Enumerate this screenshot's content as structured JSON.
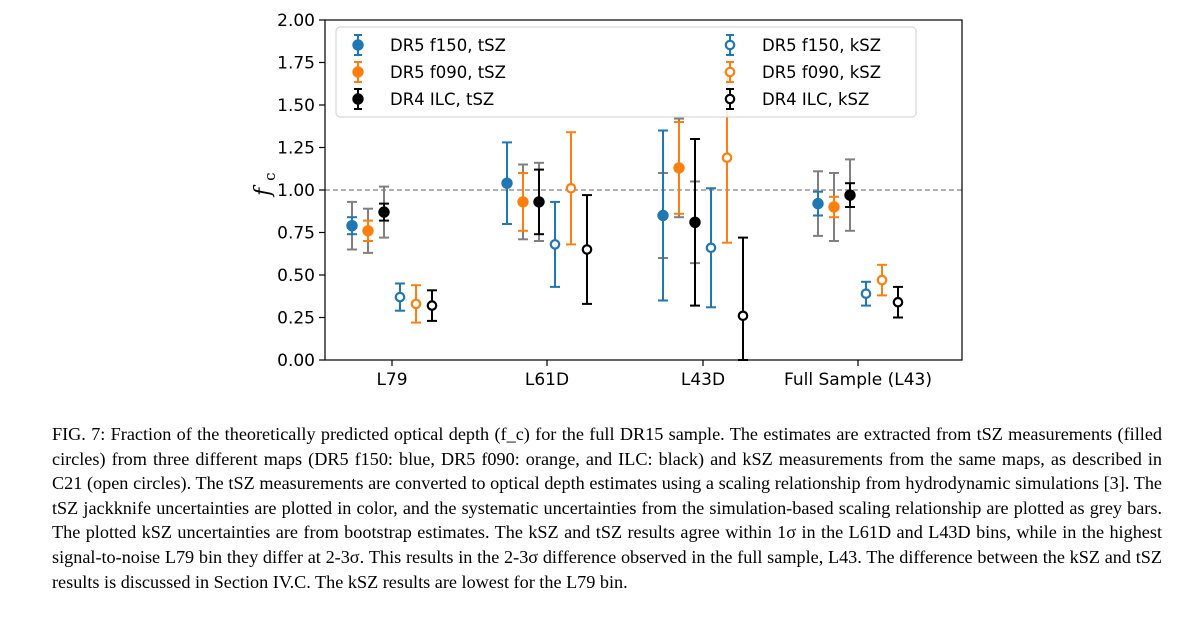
{
  "chart_data": {
    "type": "scatter",
    "ylabel": "f_c",
    "ylabel_main": "f",
    "ylabel_sub": "c",
    "ylim": [
      0,
      2.0
    ],
    "yticks": [
      "0.00",
      "0.25",
      "0.50",
      "0.75",
      "1.00",
      "1.25",
      "1.50",
      "1.75",
      "2.00"
    ],
    "categories": [
      "L79",
      "L61D",
      "L43D",
      "Full Sample (L43)"
    ],
    "reference_line": 1.0,
    "grid": false,
    "legend_location": "top",
    "series": [
      {
        "name": "DR5 f150, tSZ",
        "color": "#1f77b4",
        "marker": "filled",
        "values": [
          0.79,
          1.04,
          0.85,
          0.92
        ],
        "err": [
          [
            0.05,
            0.05
          ],
          [
            0.24,
            0.24
          ],
          [
            0.5,
            0.5
          ],
          [
            0.07,
            0.07
          ]
        ],
        "sys": [
          [
            0.14,
            0.14
          ],
          null,
          [
            0.25,
            0.25
          ],
          [
            0.19,
            0.19
          ]
        ]
      },
      {
        "name": "DR5 f090, tSZ",
        "color": "#ff7f0e",
        "marker": "filled",
        "values": [
          0.76,
          0.93,
          1.13,
          0.9
        ],
        "err": [
          [
            0.06,
            0.06
          ],
          [
            0.17,
            0.17
          ],
          [
            0.27,
            0.27
          ],
          [
            0.06,
            0.06
          ]
        ],
        "sys": [
          [
            0.13,
            0.13
          ],
          [
            0.22,
            0.22
          ],
          [
            0.29,
            0.29
          ],
          [
            0.2,
            0.2
          ]
        ]
      },
      {
        "name": "DR4 ILC, tSZ",
        "color": "#000000",
        "marker": "filled",
        "values": [
          0.87,
          0.93,
          0.81,
          0.97
        ],
        "err": [
          [
            0.05,
            0.05
          ],
          [
            0.19,
            0.19
          ],
          [
            0.49,
            0.49
          ],
          [
            0.07,
            0.07
          ]
        ],
        "sys": [
          [
            0.15,
            0.15
          ],
          [
            0.23,
            0.23
          ],
          [
            0.24,
            0.24
          ],
          [
            0.21,
            0.21
          ]
        ]
      },
      {
        "name": "DR5 f150, kSZ",
        "color": "#1f77b4",
        "marker": "open",
        "values": [
          0.37,
          0.68,
          0.66,
          0.39
        ],
        "err": [
          [
            0.08,
            0.08
          ],
          [
            0.25,
            0.25
          ],
          [
            0.35,
            0.35
          ],
          [
            0.07,
            0.07
          ]
        ]
      },
      {
        "name": "DR5 f090, kSZ",
        "color": "#ff7f0e",
        "marker": "open",
        "values": [
          0.33,
          1.01,
          1.19,
          0.47
        ],
        "err": [
          [
            0.11,
            0.11
          ],
          [
            0.33,
            0.33
          ],
          [
            0.5,
            0.5
          ],
          [
            0.09,
            0.09
          ]
        ]
      },
      {
        "name": "DR4 ILC, kSZ",
        "color": "#000000",
        "marker": "open",
        "values": [
          0.32,
          0.65,
          0.26,
          0.34
        ],
        "err": [
          [
            0.09,
            0.09
          ],
          [
            0.32,
            0.32
          ],
          [
            0.46,
            0.46
          ],
          [
            0.09,
            0.09
          ]
        ]
      }
    ]
  },
  "caption": {
    "text": "FIG. 7: Fraction of the theoretically predicted optical depth (f_c) for the full DR15 sample. The estimates are extracted from tSZ measurements (filled circles) from three different maps (DR5 f150: blue, DR5 f090: orange, and ILC: black) and kSZ measurements from the same maps, as described in C21 (open circles). The tSZ measurements are converted to optical depth estimates using a scaling relationship from hydrodynamic simulations [3]. The tSZ jackknife uncertainties are plotted in color, and the systematic uncertainties from the simulation-based scaling relationship are plotted as grey bars. The plotted kSZ uncertainties are from bootstrap estimates. The kSZ and tSZ results agree within 1σ in the L61D and L43D bins, while in the highest signal-to-noise L79 bin they differ at 2-3σ. This results in the 2-3σ difference observed in the full sample, L43. The difference between the kSZ and tSZ results is discussed in Section IV.C. The kSZ results are lowest for the L79 bin."
  },
  "colors": {
    "tsz_sys_bar": "#808080",
    "reference_line": "#808080"
  }
}
